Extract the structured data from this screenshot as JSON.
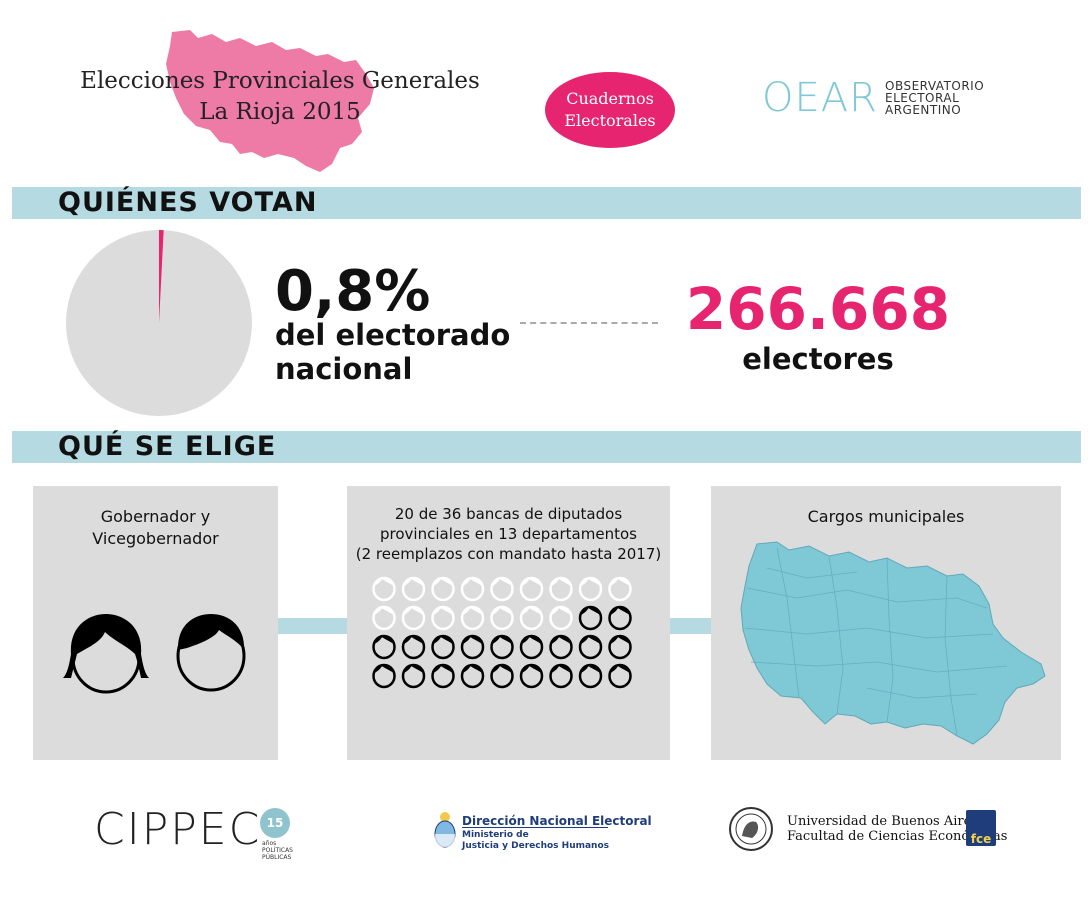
{
  "header": {
    "title_line1": "Elecciones Provinciales Generales",
    "title_line2": "La Rioja 2015",
    "badge_line1": "Cuadernos",
    "badge_line2": "Electorales",
    "oear_mark": "OEAR",
    "oear_text": [
      "OBSERVATORIO",
      "ELECTORAL",
      "ARGENTINO"
    ]
  },
  "colors": {
    "accent_pink": "#e6246f",
    "band_blue": "#b6dae1",
    "map_blue": "#7fc8d6",
    "panel_gray": "#dcdcdc"
  },
  "section_quienes": {
    "label": "QUIÉNES VOTAN",
    "share_value": 0.8,
    "share_text": "0,8%",
    "share_desc_line1": "del electorado",
    "share_desc_line2": "nacional",
    "voters_number": "266.668",
    "voters_label": "electores"
  },
  "section_que": {
    "label": "QUÉ SE ELIGE",
    "panel1": {
      "title_line1": "Gobernador y",
      "title_line2": "Vicegobernador",
      "icons": [
        "woman-face-icon",
        "man-face-icon"
      ]
    },
    "panel2": {
      "title_line1": "20 de 36 bancas de diputados",
      "title_line2": "provinciales en 13 departamentos",
      "title_line3": "(2 reemplazos con mandato hasta 2017)",
      "total_seats": 36,
      "elected_seats": 20,
      "icon": "deputy-face-icon"
    },
    "panel3": {
      "title": "Cargos municipales",
      "icon": "la-rioja-departments-map-icon"
    }
  },
  "footer": {
    "cippec": "CIPPEC",
    "cippec_badge": "15",
    "cippec_small": [
      "años",
      "POLÍTICAS",
      "PÚBLICAS"
    ],
    "dne_title": "Dirección Nacional Electoral",
    "dne_sub1": "Ministerio de",
    "dne_sub2": "Justicia y Derechos Humanos",
    "uba_line1": "Universidad de Buenos Aires",
    "uba_line2": "Facultad de Ciencias Económicas",
    "fce": "fce"
  }
}
